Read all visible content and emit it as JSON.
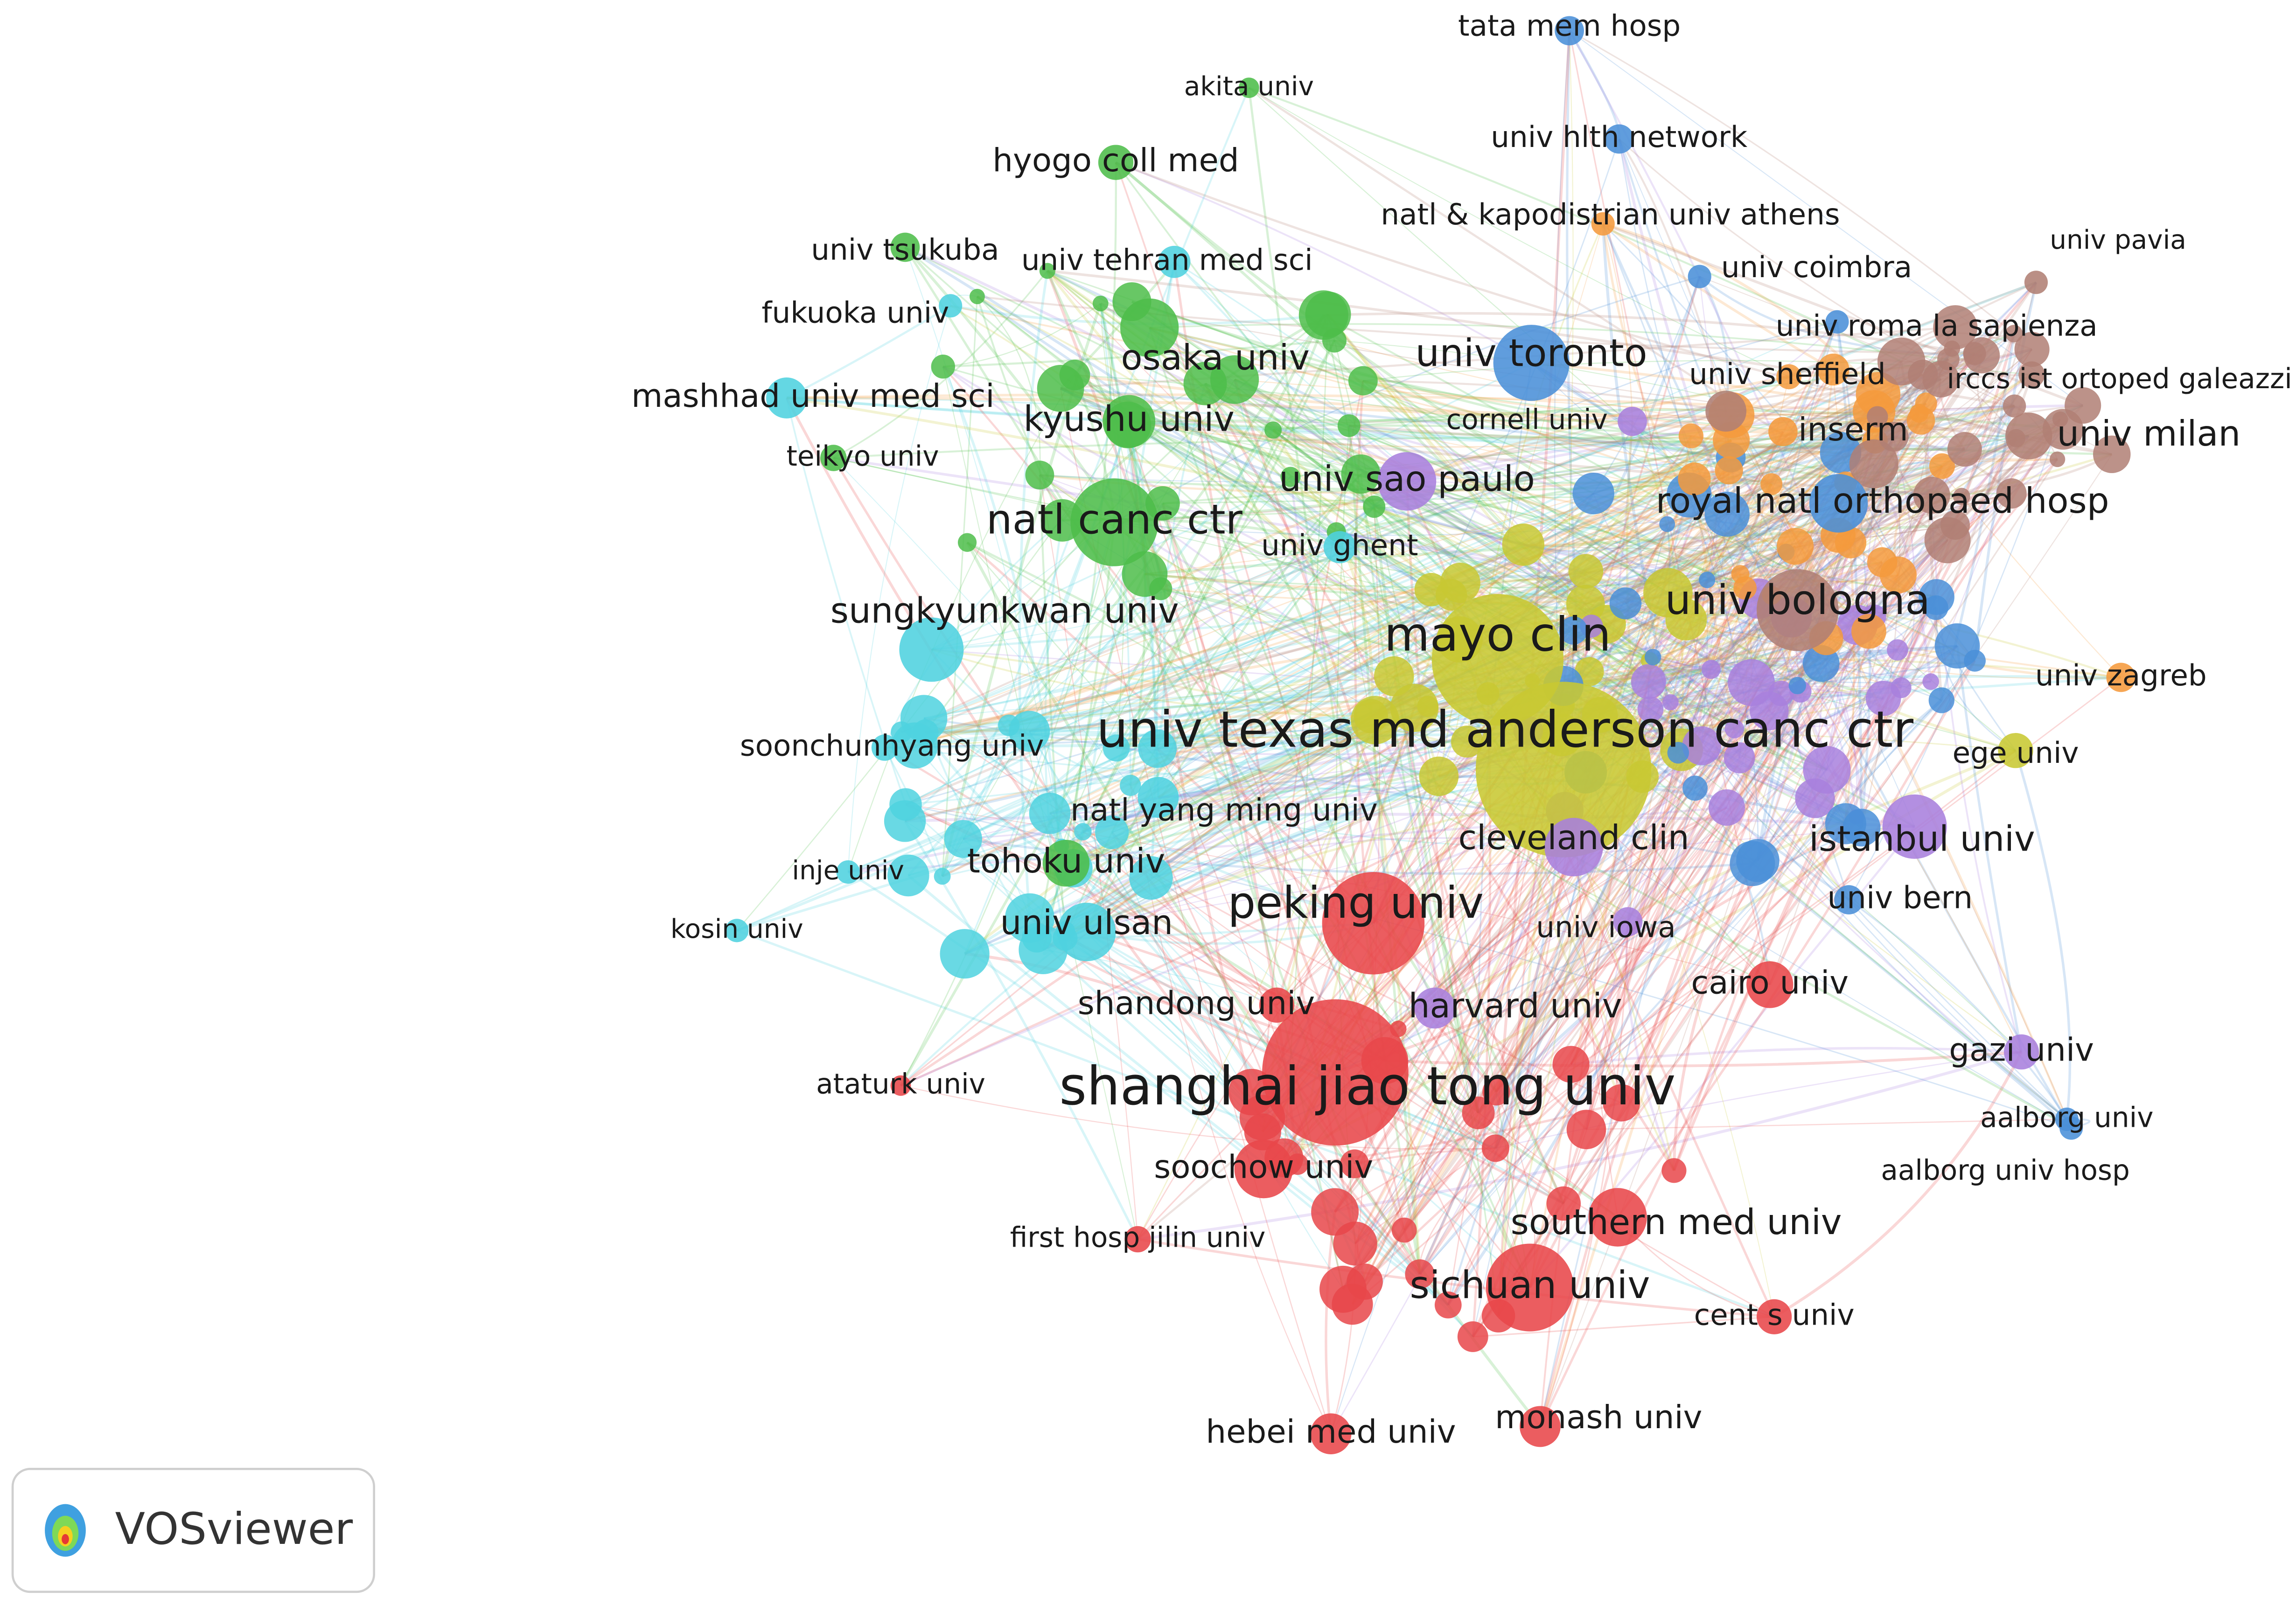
{
  "nodes": [
    {
      "label": "tata mem hosp"
    },
    {
      "label": "akita univ"
    },
    {
      "label": "hyogo coll med"
    },
    {
      "label": "univ hlth network"
    },
    {
      "label": "natl & kapodistrian univ athens"
    },
    {
      "label": "univ pavia"
    },
    {
      "label": "univ tsukuba"
    },
    {
      "label": "univ tehran med sci"
    },
    {
      "label": "univ coimbra"
    },
    {
      "label": "fukuoka univ"
    },
    {
      "label": "univ roma la sapienza"
    },
    {
      "label": "univ toronto"
    },
    {
      "label": "osaka univ"
    },
    {
      "label": "mashhad univ med sci"
    },
    {
      "label": "univ sheffield"
    },
    {
      "label": "irccs ist ortoped galeazzi"
    },
    {
      "label": "kyushu univ"
    },
    {
      "label": "cornell univ"
    },
    {
      "label": "inserm"
    },
    {
      "label": "univ milan"
    },
    {
      "label": "teikyo univ"
    },
    {
      "label": "univ sao paulo"
    },
    {
      "label": "royal natl orthopaed hosp"
    },
    {
      "label": "natl canc ctr"
    },
    {
      "label": "univ ghent"
    },
    {
      "label": "univ bologna"
    },
    {
      "label": "sungkyunkwan univ"
    },
    {
      "label": "mayo clin"
    },
    {
      "label": "univ zagreb"
    },
    {
      "label": "univ texas md anderson canc ctr"
    },
    {
      "label": "ege univ"
    },
    {
      "label": "soonchunhyang univ"
    },
    {
      "label": "natl yang ming univ"
    },
    {
      "label": "cleveland clin"
    },
    {
      "label": "istanbul univ"
    },
    {
      "label": "inje univ"
    },
    {
      "label": "tohoku univ"
    },
    {
      "label": "peking univ"
    },
    {
      "label": "univ bern"
    },
    {
      "label": "kosin univ"
    },
    {
      "label": "univ ulsan"
    },
    {
      "label": "univ iowa"
    },
    {
      "label": "cairo univ"
    },
    {
      "label": "shandong univ"
    },
    {
      "label": "harvard univ"
    },
    {
      "label": "gazi univ"
    },
    {
      "label": "ataturk univ"
    },
    {
      "label": "shanghai jiao tong univ"
    },
    {
      "label": "aalborg univ"
    },
    {
      "label": "aalborg univ hosp"
    },
    {
      "label": "soochow univ"
    },
    {
      "label": "southern med univ"
    },
    {
      "label": "first hosp jilin univ"
    },
    {
      "label": "sichuan univ"
    },
    {
      "label": "cent s univ"
    },
    {
      "label": "hebei med univ"
    },
    {
      "label": "monash univ"
    }
  ],
  "logo": "VOSviewer"
}
